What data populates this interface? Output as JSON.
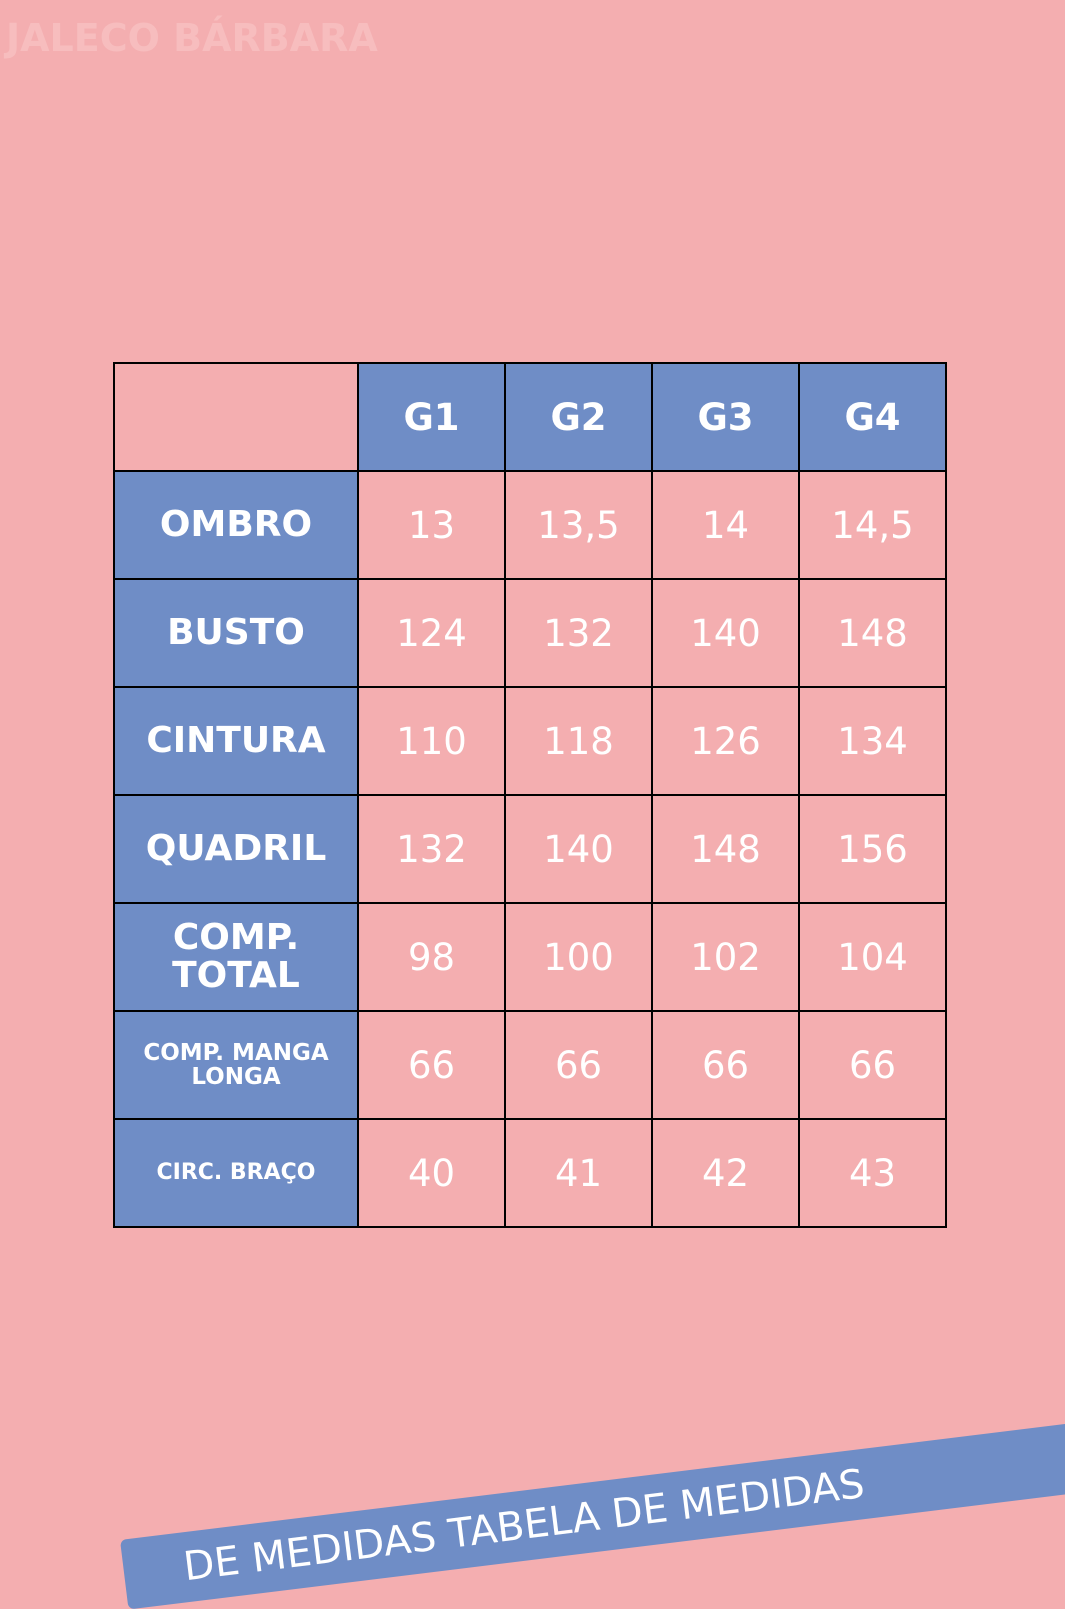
{
  "title": "JALECO BÁRBARA",
  "table": {
    "headers": [
      "G1",
      "G2",
      "G3",
      "G4"
    ],
    "rows": [
      {
        "label": "OMBRO",
        "values": [
          "13",
          "13,5",
          "14",
          "14,5"
        ]
      },
      {
        "label": "BUSTO",
        "values": [
          "124",
          "132",
          "140",
          "148"
        ]
      },
      {
        "label": "CINTURA",
        "values": [
          "110",
          "118",
          "126",
          "134"
        ]
      },
      {
        "label": "QUADRIL",
        "values": [
          "132",
          "140",
          "148",
          "156"
        ]
      },
      {
        "label": "COMP. TOTAL",
        "values": [
          "98",
          "100",
          "102",
          "104"
        ]
      },
      {
        "label": "COMP. MANGA LONGA",
        "values": [
          "66",
          "66",
          "66",
          "66"
        ]
      },
      {
        "label": "CIRC. BRAÇO",
        "values": [
          "40",
          "41",
          "42",
          "43"
        ]
      }
    ]
  },
  "banner": "DE MEDIDAS TABELA DE MEDIDAS",
  "colors": {
    "background": "#f4aeb0",
    "accent": "#6f8dc6"
  }
}
